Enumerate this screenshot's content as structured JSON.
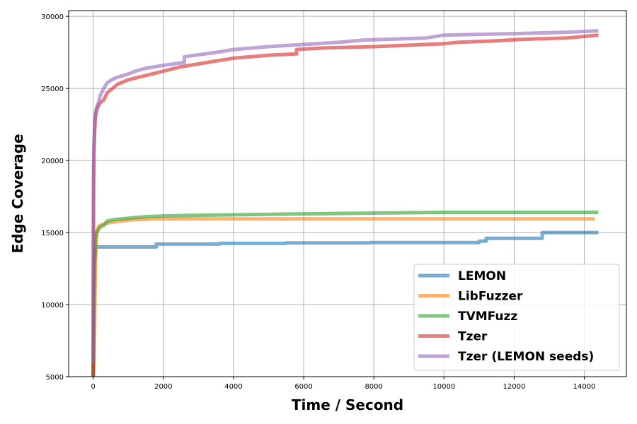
{
  "chart_data": {
    "type": "line",
    "title": "",
    "xlabel": "Time / Second",
    "ylabel": "Edge Coverage",
    "xlim": [
      -700,
      15200
    ],
    "ylim": [
      5000,
      30400
    ],
    "xticks": [
      0,
      2000,
      4000,
      6000,
      8000,
      10000,
      12000,
      14000
    ],
    "yticks": [
      5000,
      10000,
      15000,
      20000,
      25000,
      30000
    ],
    "grid": true,
    "legend_position": "lower-right",
    "series": [
      {
        "name": "LEMON",
        "color": "#1f77b4",
        "x": [
          0,
          15,
          30,
          60,
          100,
          1800,
          1800,
          3600,
          3600,
          5500,
          5500,
          7900,
          7900,
          11000,
          11000,
          11200,
          11200,
          12800,
          12800,
          14400
        ],
        "y": [
          5000,
          9000,
          12000,
          13800,
          14000,
          14000,
          14200,
          14200,
          14250,
          14250,
          14280,
          14280,
          14300,
          14300,
          14400,
          14400,
          14600,
          14600,
          15000,
          15000
        ]
      },
      {
        "name": "LibFuzzer",
        "color": "#ff7f0e",
        "x": [
          0,
          30,
          60,
          80,
          100,
          150,
          200,
          300,
          500,
          800,
          1200,
          1800,
          14300
        ],
        "y": [
          5000,
          6500,
          12500,
          14000,
          15000,
          15400,
          15500,
          15600,
          15700,
          15800,
          15900,
          15950,
          15950
        ]
      },
      {
        "name": "TVMFuzz",
        "color": "#2ca02c",
        "x": [
          0,
          10,
          30,
          60,
          100,
          150,
          200,
          300,
          400,
          600,
          1000,
          1500,
          2000,
          3000,
          4500,
          6000,
          8000,
          10000,
          12000,
          14400
        ],
        "y": [
          5000,
          9000,
          13000,
          14500,
          15000,
          15200,
          15400,
          15500,
          15800,
          15900,
          16000,
          16100,
          16150,
          16200,
          16250,
          16300,
          16350,
          16400,
          16400,
          16400
        ]
      },
      {
        "name": "Tzer",
        "color": "#d62728",
        "x": [
          0,
          5,
          10,
          20,
          40,
          60,
          80,
          100,
          150,
          200,
          300,
          400,
          500,
          700,
          1000,
          1500,
          2000,
          2500,
          3000,
          3500,
          4000,
          5000,
          5800,
          5800,
          6500,
          8000,
          10000,
          10400,
          11500,
          12200,
          13500,
          14400
        ],
        "y": [
          5000,
          13000,
          18000,
          20500,
          22000,
          23000,
          23300,
          23500,
          23800,
          24000,
          24200,
          24700,
          24900,
          25300,
          25600,
          25900,
          26200,
          26500,
          26700,
          26900,
          27100,
          27300,
          27400,
          27700,
          27800,
          27900,
          28100,
          28200,
          28300,
          28400,
          28500,
          28700
        ]
      },
      {
        "name": "Tzer (LEMON seeds)",
        "color": "#9467bd",
        "x": [
          0,
          5,
          10,
          20,
          40,
          60,
          80,
          100,
          150,
          200,
          300,
          400,
          600,
          1000,
          1200,
          1500,
          2000,
          2600,
          2600,
          3500,
          4000,
          5000,
          6000,
          7000,
          7700,
          9500,
          10000,
          12000,
          13500,
          14400
        ],
        "y": [
          6000,
          15000,
          19500,
          21000,
          22500,
          23200,
          23500,
          23700,
          24000,
          24500,
          25000,
          25400,
          25700,
          26000,
          26200,
          26400,
          26600,
          26800,
          27200,
          27500,
          27700,
          27900,
          28050,
          28200,
          28350,
          28500,
          28700,
          28800,
          28900,
          29000
        ]
      }
    ]
  }
}
